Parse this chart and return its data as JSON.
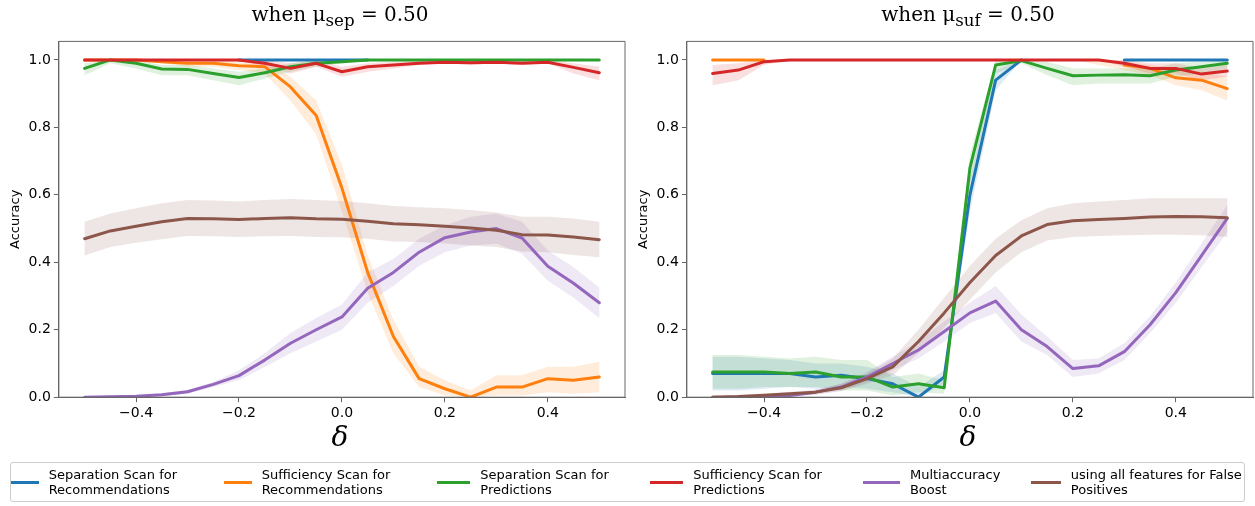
{
  "chart_data": [
    {
      "type": "line",
      "title": "when μ$_{sep}$ = 0.50",
      "xlabel": "δ",
      "ylabel": "Accuracy",
      "legend": "bottom",
      "x": [
        -0.5,
        -0.45,
        -0.4,
        -0.35,
        -0.3,
        -0.25,
        -0.2,
        -0.15,
        -0.1,
        -0.05,
        0,
        0.05,
        0.1,
        0.15,
        0.2,
        0.25,
        0.3,
        0.35,
        0.4,
        0.45,
        0.5
      ],
      "xlim": [
        -0.55,
        0.55
      ],
      "xticks": [
        {
          "value": -0.4,
          "label": "−0.4"
        },
        {
          "value": -0.2,
          "label": "−0.2"
        },
        {
          "value": 0,
          "label": "0.0"
        },
        {
          "value": 0.2,
          "label": "0.2"
        },
        {
          "value": 0.4,
          "label": "0.4"
        }
      ],
      "ylim": [
        0,
        1.055
      ],
      "yticks": [
        {
          "value": 0,
          "label": "0.0"
        },
        {
          "value": 0.2,
          "label": "0.2"
        },
        {
          "value": 0.4,
          "label": "0.4"
        },
        {
          "value": 0.6,
          "label": "0.6"
        },
        {
          "value": 0.8,
          "label": "0.8"
        },
        {
          "value": 1,
          "label": "1.0"
        }
      ],
      "grid": false,
      "marker": "none",
      "line_style": "solid",
      "series": [
        {
          "name": "Separation Scan for Recommendations",
          "color": "#1f77b4",
          "values": [
            null,
            null,
            null,
            null,
            null,
            null,
            1,
            1,
            1,
            1,
            1,
            1,
            null,
            null,
            null,
            null,
            null,
            null,
            null,
            null,
            null
          ]
        },
        {
          "name": "Sufficiency Scan for Recommendations",
          "color": "#ff7f0e",
          "values": [
            1,
            1,
            1,
            0.995,
            0.99,
            0.99,
            0.983,
            0.98,
            0.92,
            0.835,
            0.62,
            0.37,
            0.18,
            0.055,
            0.025,
            0,
            0.03,
            0.03,
            0.055,
            0.05,
            0.06
          ],
          "upper": [
            1,
            1,
            1,
            1,
            1,
            1,
            1,
            1,
            0.95,
            0.88,
            0.69,
            0.42,
            0.23,
            0.09,
            0.05,
            0.02,
            0.065,
            0.065,
            0.09,
            0.09,
            0.105
          ],
          "lower": [
            1,
            1,
            1,
            0.99,
            0.98,
            0.98,
            0.97,
            0.96,
            0.88,
            0.78,
            0.55,
            0.31,
            0.13,
            0.03,
            0.005,
            0,
            0.005,
            0.005,
            0.015,
            0.01,
            0.015
          ]
        },
        {
          "name": "Separation Scan for Predictions",
          "color": "#2ca02c",
          "values": [
            0.975,
            1,
            0.99,
            0.973,
            0.972,
            0.96,
            0.948,
            0.962,
            0.98,
            0.99,
            0.995,
            1,
            1,
            1,
            1,
            1,
            1,
            1,
            1,
            1,
            1
          ],
          "upper": [
            0.99,
            1,
            1,
            0.985,
            0.985,
            0.975,
            0.965,
            0.975,
            0.99,
            1,
            1,
            1,
            1,
            1,
            1,
            1,
            1,
            1,
            1,
            1,
            1
          ],
          "lower": [
            0.955,
            0.99,
            0.975,
            0.955,
            0.955,
            0.94,
            0.925,
            0.945,
            0.965,
            0.98,
            0.99,
            1,
            1,
            1,
            1,
            1,
            1,
            1,
            1,
            1,
            1
          ]
        },
        {
          "name": "Sufficiency Scan for Predictions",
          "color": "#d62728",
          "values": [
            1,
            1,
            1,
            1,
            1,
            1,
            1,
            0.99,
            0.975,
            0.99,
            0.965,
            0.98,
            0.985,
            0.99,
            0.993,
            0.992,
            0.993,
            0.99,
            0.993,
            0.978,
            0.962
          ],
          "upper": [
            1,
            1,
            1,
            1,
            1,
            1,
            1,
            1,
            0.99,
            1,
            0.98,
            0.99,
            0.995,
            1,
            1,
            1,
            1,
            1,
            1,
            0.99,
            0.98
          ],
          "lower": [
            1,
            1,
            1,
            1,
            1,
            1,
            1,
            0.98,
            0.96,
            0.98,
            0.95,
            0.965,
            0.975,
            0.985,
            0.99,
            0.985,
            0.99,
            0.985,
            0.99,
            0.96,
            0.94
          ]
        },
        {
          "name": "Multiaccuracy Boost",
          "color": "#9467bd",
          "values": [
            0,
            0.001,
            0.003,
            0.007,
            0.016,
            0.038,
            0.064,
            0.11,
            0.16,
            0.2,
            0.238,
            0.323,
            0.37,
            0.43,
            0.473,
            0.49,
            0.5,
            0.472,
            0.388,
            0.338,
            0.28
          ],
          "upper": [
            0,
            0.002,
            0.005,
            0.012,
            0.022,
            0.045,
            0.08,
            0.13,
            0.19,
            0.235,
            0.275,
            0.37,
            0.41,
            0.47,
            0.51,
            0.535,
            0.545,
            0.52,
            0.435,
            0.385,
            0.325
          ],
          "lower": [
            0,
            0,
            0.001,
            0.003,
            0.01,
            0.03,
            0.05,
            0.09,
            0.13,
            0.165,
            0.2,
            0.28,
            0.33,
            0.39,
            0.43,
            0.45,
            0.455,
            0.425,
            0.345,
            0.295,
            0.235
          ]
        },
        {
          "name": "using all features for False Positives",
          "color": "#8c564b",
          "values": [
            0.47,
            0.493,
            0.507,
            0.52,
            0.53,
            0.529,
            0.527,
            0.53,
            0.532,
            0.529,
            0.528,
            0.522,
            0.514,
            0.511,
            0.507,
            0.502,
            0.495,
            0.482,
            0.481,
            0.475,
            0.467
          ],
          "upper": [
            0.52,
            0.545,
            0.56,
            0.575,
            0.585,
            0.583,
            0.58,
            0.585,
            0.588,
            0.585,
            0.582,
            0.575,
            0.567,
            0.563,
            0.56,
            0.555,
            0.548,
            0.535,
            0.535,
            0.53,
            0.52
          ],
          "lower": [
            0.42,
            0.445,
            0.458,
            0.468,
            0.478,
            0.477,
            0.475,
            0.477,
            0.478,
            0.475,
            0.474,
            0.47,
            0.462,
            0.46,
            0.456,
            0.45,
            0.445,
            0.432,
            0.43,
            0.422,
            0.415
          ]
        }
      ]
    },
    {
      "type": "line",
      "title": "when μ$_{suf}$ = 0.50",
      "xlabel": "δ",
      "ylabel": "Accuracy",
      "x": [
        -0.5,
        -0.45,
        -0.4,
        -0.35,
        -0.3,
        -0.25,
        -0.2,
        -0.15,
        -0.1,
        -0.05,
        0,
        0.05,
        0.1,
        0.15,
        0.2,
        0.25,
        0.3,
        0.35,
        0.4,
        0.45,
        0.5
      ],
      "xlim": [
        -0.55,
        0.55
      ],
      "xticks": [
        {
          "value": -0.4,
          "label": "−0.4"
        },
        {
          "value": -0.2,
          "label": "−0.2"
        },
        {
          "value": 0,
          "label": "0.0"
        },
        {
          "value": 0.2,
          "label": "0.2"
        },
        {
          "value": 0.4,
          "label": "0.4"
        }
      ],
      "ylim": [
        0,
        1.055
      ],
      "yticks": [
        {
          "value": 0,
          "label": "0.0"
        },
        {
          "value": 0.2,
          "label": "0.2"
        },
        {
          "value": 0.4,
          "label": "0.4"
        },
        {
          "value": 0.6,
          "label": "0.6"
        },
        {
          "value": 0.8,
          "label": "0.8"
        },
        {
          "value": 1,
          "label": "1.0"
        }
      ],
      "grid": false,
      "marker": "none",
      "line_style": "solid",
      "series": [
        {
          "color": "#1f77b4",
          "values": [
            0.07,
            0.07,
            0.07,
            0.07,
            0.06,
            0.065,
            0.055,
            0.04,
            0,
            0.06,
            0.6,
            0.94,
            1,
            null,
            null,
            null,
            1,
            1,
            1,
            1,
            1
          ],
          "upper": [
            0.12,
            0.12,
            0.115,
            0.11,
            0.1,
            0.1,
            0.09,
            0.07,
            0.03,
            0.08,
            0.65,
            0.97,
            1,
            1,
            1,
            1,
            1,
            1,
            1,
            1,
            1
          ],
          "lower": [
            0.02,
            0.02,
            0.025,
            0.03,
            0.025,
            0.03,
            0.025,
            0.015,
            0,
            0.04,
            0.55,
            0.91,
            1,
            1,
            1,
            1,
            1,
            1,
            1,
            1,
            1
          ]
        },
        {
          "color": "#ff7f0e",
          "values": [
            1,
            1,
            1,
            null,
            null,
            null,
            null,
            null,
            null,
            null,
            null,
            null,
            null,
            null,
            null,
            null,
            0.985,
            0.975,
            0.947,
            0.94,
            0.915
          ],
          "upper": [
            1,
            1,
            1,
            1,
            1,
            1,
            1,
            1,
            1,
            1,
            1,
            1,
            1,
            1,
            1,
            1,
            0.995,
            0.985,
            0.975,
            0.965,
            0.95
          ],
          "lower": [
            1,
            1,
            1,
            1,
            1,
            1,
            1,
            1,
            1,
            1,
            1,
            1,
            1,
            1,
            1,
            0.985,
            0.97,
            0.955,
            0.925,
            0.91,
            0.88
          ]
        },
        {
          "color": "#2ca02c",
          "values": [
            0.075,
            0.075,
            0.075,
            0.07,
            0.075,
            0.06,
            0.06,
            0.03,
            0.04,
            0.028,
            0.68,
            0.985,
            0.998,
            0.975,
            0.953,
            0.955,
            0.956,
            0.953,
            0.97,
            0.98,
            0.99
          ],
          "upper": [
            0.125,
            0.125,
            0.12,
            0.115,
            0.12,
            0.11,
            0.11,
            0.06,
            0.07,
            0.05,
            0.72,
            1,
            1,
            0.995,
            0.975,
            0.975,
            0.975,
            0.975,
            0.99,
            0.995,
            1
          ],
          "lower": [
            0.025,
            0.025,
            0.03,
            0.03,
            0.03,
            0.02,
            0.02,
            0.005,
            0.015,
            0.01,
            0.63,
            0.96,
            0.99,
            0.955,
            0.925,
            0.93,
            0.93,
            0.93,
            0.95,
            0.96,
            0.975
          ]
        },
        {
          "color": "#d62728",
          "values": [
            0.96,
            0.97,
            0.995,
            1,
            1,
            1,
            1,
            1,
            1,
            1,
            1,
            1,
            1,
            1,
            1,
            1,
            0.99,
            0.975,
            0.975,
            0.958,
            0.967
          ],
          "upper": [
            0.985,
            0.99,
            1,
            1,
            1,
            1,
            1,
            1,
            1,
            1,
            1,
            1,
            1,
            1,
            1,
            1,
            1,
            0.99,
            0.99,
            0.975,
            0.985
          ],
          "lower": [
            0.925,
            0.94,
            0.985,
            1,
            1,
            1,
            1,
            1,
            1,
            1,
            1,
            1,
            1,
            1,
            1,
            1,
            0.98,
            0.96,
            0.96,
            0.94,
            0.95
          ]
        },
        {
          "color": "#9467bd",
          "values": [
            0,
            0,
            0,
            0.005,
            0.015,
            0.03,
            0.06,
            0.1,
            0.14,
            0.195,
            0.25,
            0.285,
            0.2,
            0.15,
            0.085,
            0.093,
            0.135,
            0.215,
            0.31,
            0.42,
            0.53
          ],
          "upper": [
            0,
            0.002,
            0.005,
            0.01,
            0.022,
            0.04,
            0.075,
            0.12,
            0.165,
            0.225,
            0.28,
            0.33,
            0.245,
            0.18,
            0.11,
            0.115,
            0.16,
            0.24,
            0.34,
            0.455,
            0.57
          ],
          "lower": [
            0,
            0,
            0,
            0.001,
            0.008,
            0.02,
            0.045,
            0.08,
            0.115,
            0.165,
            0.22,
            0.25,
            0.165,
            0.125,
            0.06,
            0.07,
            0.11,
            0.19,
            0.28,
            0.385,
            0.49
          ]
        },
        {
          "color": "#8c564b",
          "values": [
            0,
            0.002,
            0.006,
            0.01,
            0.015,
            0.028,
            0.055,
            0.09,
            0.165,
            0.25,
            0.34,
            0.42,
            0.478,
            0.512,
            0.523,
            0.527,
            0.53,
            0.534,
            0.536,
            0.535,
            0.532
          ],
          "upper": [
            0,
            0.004,
            0.01,
            0.016,
            0.022,
            0.04,
            0.07,
            0.115,
            0.2,
            0.295,
            0.39,
            0.47,
            0.525,
            0.56,
            0.575,
            0.58,
            0.585,
            0.59,
            0.59,
            0.59,
            0.59
          ],
          "lower": [
            0,
            0,
            0.002,
            0.005,
            0.008,
            0.018,
            0.04,
            0.065,
            0.13,
            0.205,
            0.29,
            0.37,
            0.43,
            0.465,
            0.475,
            0.478,
            0.48,
            0.482,
            0.482,
            0.48,
            0.475
          ]
        }
      ]
    }
  ]
}
